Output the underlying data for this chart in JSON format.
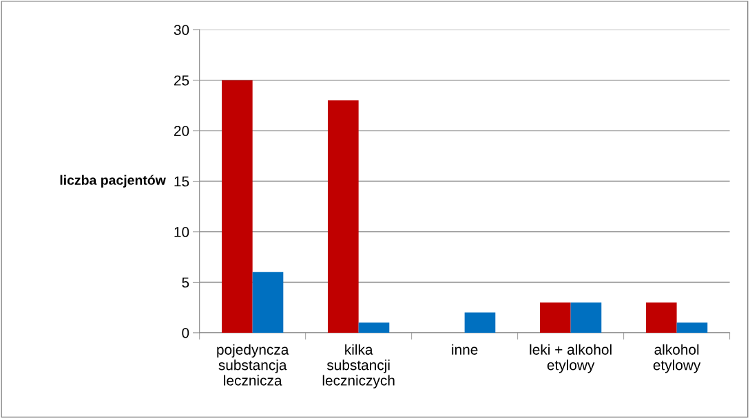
{
  "chart_data": {
    "type": "bar",
    "ylabel": "liczba pacjentów",
    "categories": [
      "pojedyncza\nsubstancja\nlecznicza",
      "kilka\nsubstancji\nleczniczych",
      "inne",
      "leki + alkohol\netylowy",
      "alkohol\netylowy"
    ],
    "series": [
      {
        "color": "#c00000",
        "values": [
          25,
          23,
          0,
          3,
          3
        ]
      },
      {
        "color": "#0070c0",
        "values": [
          6,
          1,
          2,
          3,
          1
        ]
      }
    ],
    "ylim": [
      0,
      30
    ],
    "yticks": [
      0,
      5,
      10,
      15,
      20,
      25,
      30
    ],
    "grid": "y",
    "legend": false
  }
}
